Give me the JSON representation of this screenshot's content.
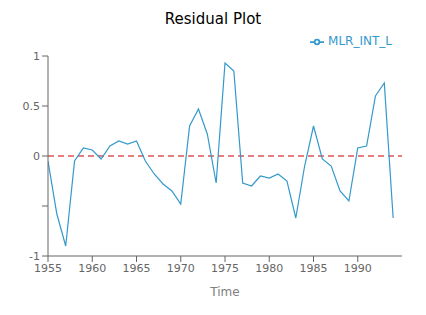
{
  "chart_data": {
    "type": "line",
    "title": "Residual Plot",
    "x_label": "Time",
    "x": [
      1955,
      1956,
      1957,
      1958,
      1959,
      1960,
      1961,
      1962,
      1963,
      1964,
      1965,
      1966,
      1967,
      1968,
      1969,
      1970,
      1971,
      1972,
      1973,
      1974,
      1975,
      1976,
      1977,
      1978,
      1979,
      1980,
      1981,
      1982,
      1983,
      1984,
      1985,
      1986,
      1987,
      1988,
      1989,
      1990,
      1991,
      1992,
      1993,
      1994
    ],
    "series": [
      {
        "name": "MLR_INT_L",
        "color": "#3399CC",
        "values": [
          -0.05,
          -0.58,
          -0.9,
          -0.05,
          0.08,
          0.06,
          -0.03,
          0.1,
          0.15,
          0.12,
          0.15,
          -0.05,
          -0.18,
          -0.28,
          -0.35,
          -0.48,
          0.3,
          0.47,
          0.22,
          -0.27,
          0.93,
          0.85,
          -0.27,
          -0.3,
          -0.2,
          -0.22,
          -0.18,
          -0.25,
          -0.62,
          -0.1,
          0.3,
          -0.03,
          -0.1,
          -0.35,
          -0.45,
          0.08,
          0.1,
          0.6,
          0.73,
          -0.62
        ]
      }
    ],
    "reference_lines": [
      {
        "y": 0,
        "color": "#CC0000",
        "line_style": "dashed"
      }
    ],
    "xlim": [
      1955,
      1995
    ],
    "ylim": [
      -1,
      1
    ],
    "xticks": [
      1955,
      1960,
      1965,
      1970,
      1975,
      1980,
      1985,
      1990
    ],
    "yticks": [
      -1,
      {
        "value": -0.5,
        "label": ""
      },
      0,
      0.5,
      1
    ],
    "grid": false,
    "legend": "upper right"
  }
}
